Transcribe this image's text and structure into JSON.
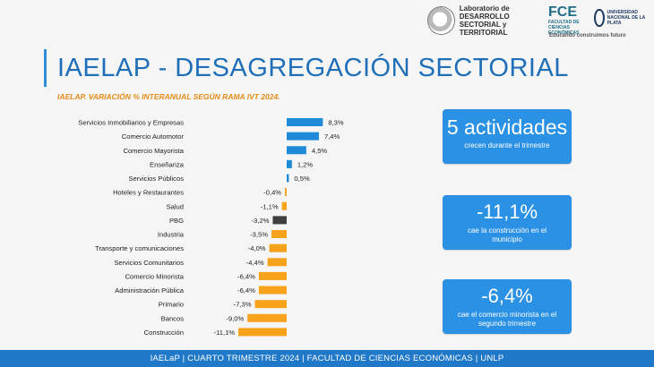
{
  "header": {
    "lab_name": "Laboratorio de DESARROLLO SECTORIAL y TERRITORIAL",
    "fce_mark": "FCE",
    "fce_name": "FACULTAD DE CIENCIAS ECONÓMICAS",
    "unlp_name": "UNIVERSIDAD NACIONAL DE LA PLATA",
    "motto": "Educando construimos futuro"
  },
  "page": {
    "title": "IAELAP - DESAGREGACIÓN SECTORIAL",
    "subtitle": "IAELAP. VARIACIÓN % INTERANUAL SEGÚN RAMA IVT 2024."
  },
  "cards": [
    {
      "big": "5 actividades",
      "small": "crecen durante el trimestre"
    },
    {
      "big": "-11,1%",
      "small": "cae la construcción en el municipio"
    },
    {
      "big": "-6,4%",
      "small": "cae el comercio minorista en el segundo trimestre"
    }
  ],
  "footer": {
    "text": "IAELaP  |  CUARTO TRIMESTRE 2024  |  FACULTAD DE CIENCIAS ECONÓMICAS  |  UNLP"
  },
  "chart_data": {
    "type": "bar",
    "orientation": "horizontal",
    "title": "IAELAP. VARIACIÓN % INTERANUAL SEGÚN RAMA IVT 2024.",
    "categories": [
      "Servicios Inmobiliarios y Empresas",
      "Comercio Automotor",
      "Comercio Mayorista",
      "Enseñanza",
      "Servicios Públicos",
      "Hoteles y Restaurantes",
      "Salud",
      "PBG",
      "Industria",
      "Transporte y comunicaciones",
      "Servicios Comunitarios",
      "Comercio Minorista",
      "Administración Pública",
      "Primario",
      "Bancos",
      "Construcción"
    ],
    "values": [
      8.3,
      7.4,
      4.5,
      1.2,
      0.5,
      -0.4,
      -1.1,
      -3.2,
      -3.5,
      -4.0,
      -4.4,
      -6.4,
      -6.4,
      -7.3,
      -9.0,
      -11.1
    ],
    "labels": [
      "8,3%",
      "7,4%",
      "4,5%",
      "1,2%",
      "0,5%",
      "-0,4%",
      "-1,1%",
      "-3,2%",
      "-3,5%",
      "-4,0%",
      "-4,4%",
      "-6,4%",
      "-6,4%",
      "-7,3%",
      "-9,0%",
      "-11,1%"
    ],
    "colors": {
      "positive": "#1f8bd8",
      "negative": "#f6a21b",
      "highlight": "#3f3f3f"
    },
    "highlight_category": "PBG",
    "xlim": [
      -11.1,
      8.3
    ]
  }
}
